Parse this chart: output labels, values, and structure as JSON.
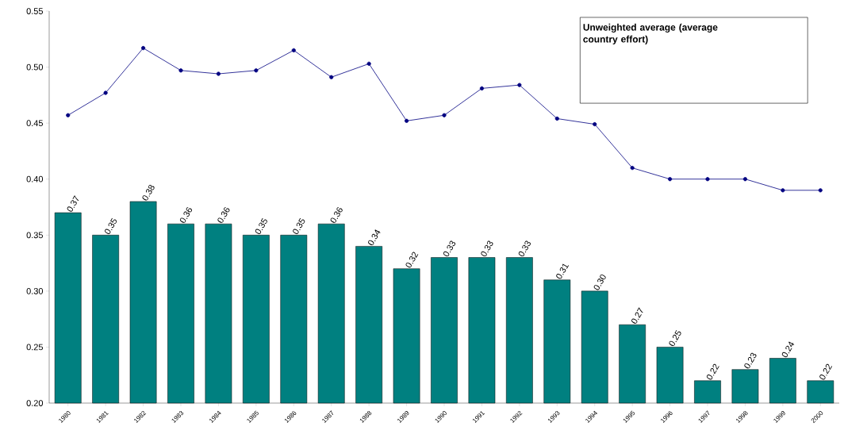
{
  "chart_data": {
    "type": "bar",
    "categories": [
      "1980",
      "1981",
      "1982",
      "1983",
      "1984",
      "1985",
      "1986",
      "1987",
      "1988",
      "1989",
      "1990",
      "1991",
      "1992",
      "1993",
      "1994",
      "1995",
      "1996",
      "1997",
      "1998",
      "1999",
      "2000"
    ],
    "series": [
      {
        "color": "#008080",
        "values": [
          0.37,
          0.35,
          0.38,
          0.36,
          0.36,
          0.35,
          0.35,
          0.36,
          0.34,
          0.32,
          0.33,
          0.33,
          0.33,
          0.31,
          0.3,
          0.27,
          0.25,
          0.22,
          0.23,
          0.24,
          0.22
        ],
        "value_labels": [
          "0.37",
          "0.35",
          "0.38",
          "0.36",
          "0.36",
          "0.35",
          "0.35",
          "0.36",
          "0.34",
          "0.32",
          "0.33",
          "0.33",
          "0.33",
          "0.31",
          "0.30",
          "0.27",
          "0.25",
          "0.22",
          "0.23",
          "0.24",
          "0.22"
        ]
      },
      {
        "type": "line",
        "color": "#000080",
        "marker": "circle",
        "values": [
          0.457,
          0.477,
          0.517,
          0.497,
          0.494,
          0.497,
          0.515,
          0.491,
          0.503,
          0.452,
          0.457,
          0.481,
          0.484,
          0.454,
          0.449,
          0.41,
          0.4,
          0.4,
          0.4,
          0.39,
          0.39
        ]
      }
    ],
    "ylim": [
      0.2,
      0.55
    ],
    "yticks": [
      {
        "value": 0.2,
        "label": "0.20"
      },
      {
        "value": 0.25,
        "label": "0.25"
      },
      {
        "value": 0.3,
        "label": "0.30"
      },
      {
        "value": 0.35,
        "label": "0.35"
      },
      {
        "value": 0.4,
        "label": "0.40"
      },
      {
        "value": 0.45,
        "label": "0.45"
      },
      {
        "value": 0.5,
        "label": "0.50"
      },
      {
        "value": 0.55,
        "label": "0.55"
      }
    ],
    "annotations": [
      "**Unweighted average (average country effort)**"
    ]
  }
}
